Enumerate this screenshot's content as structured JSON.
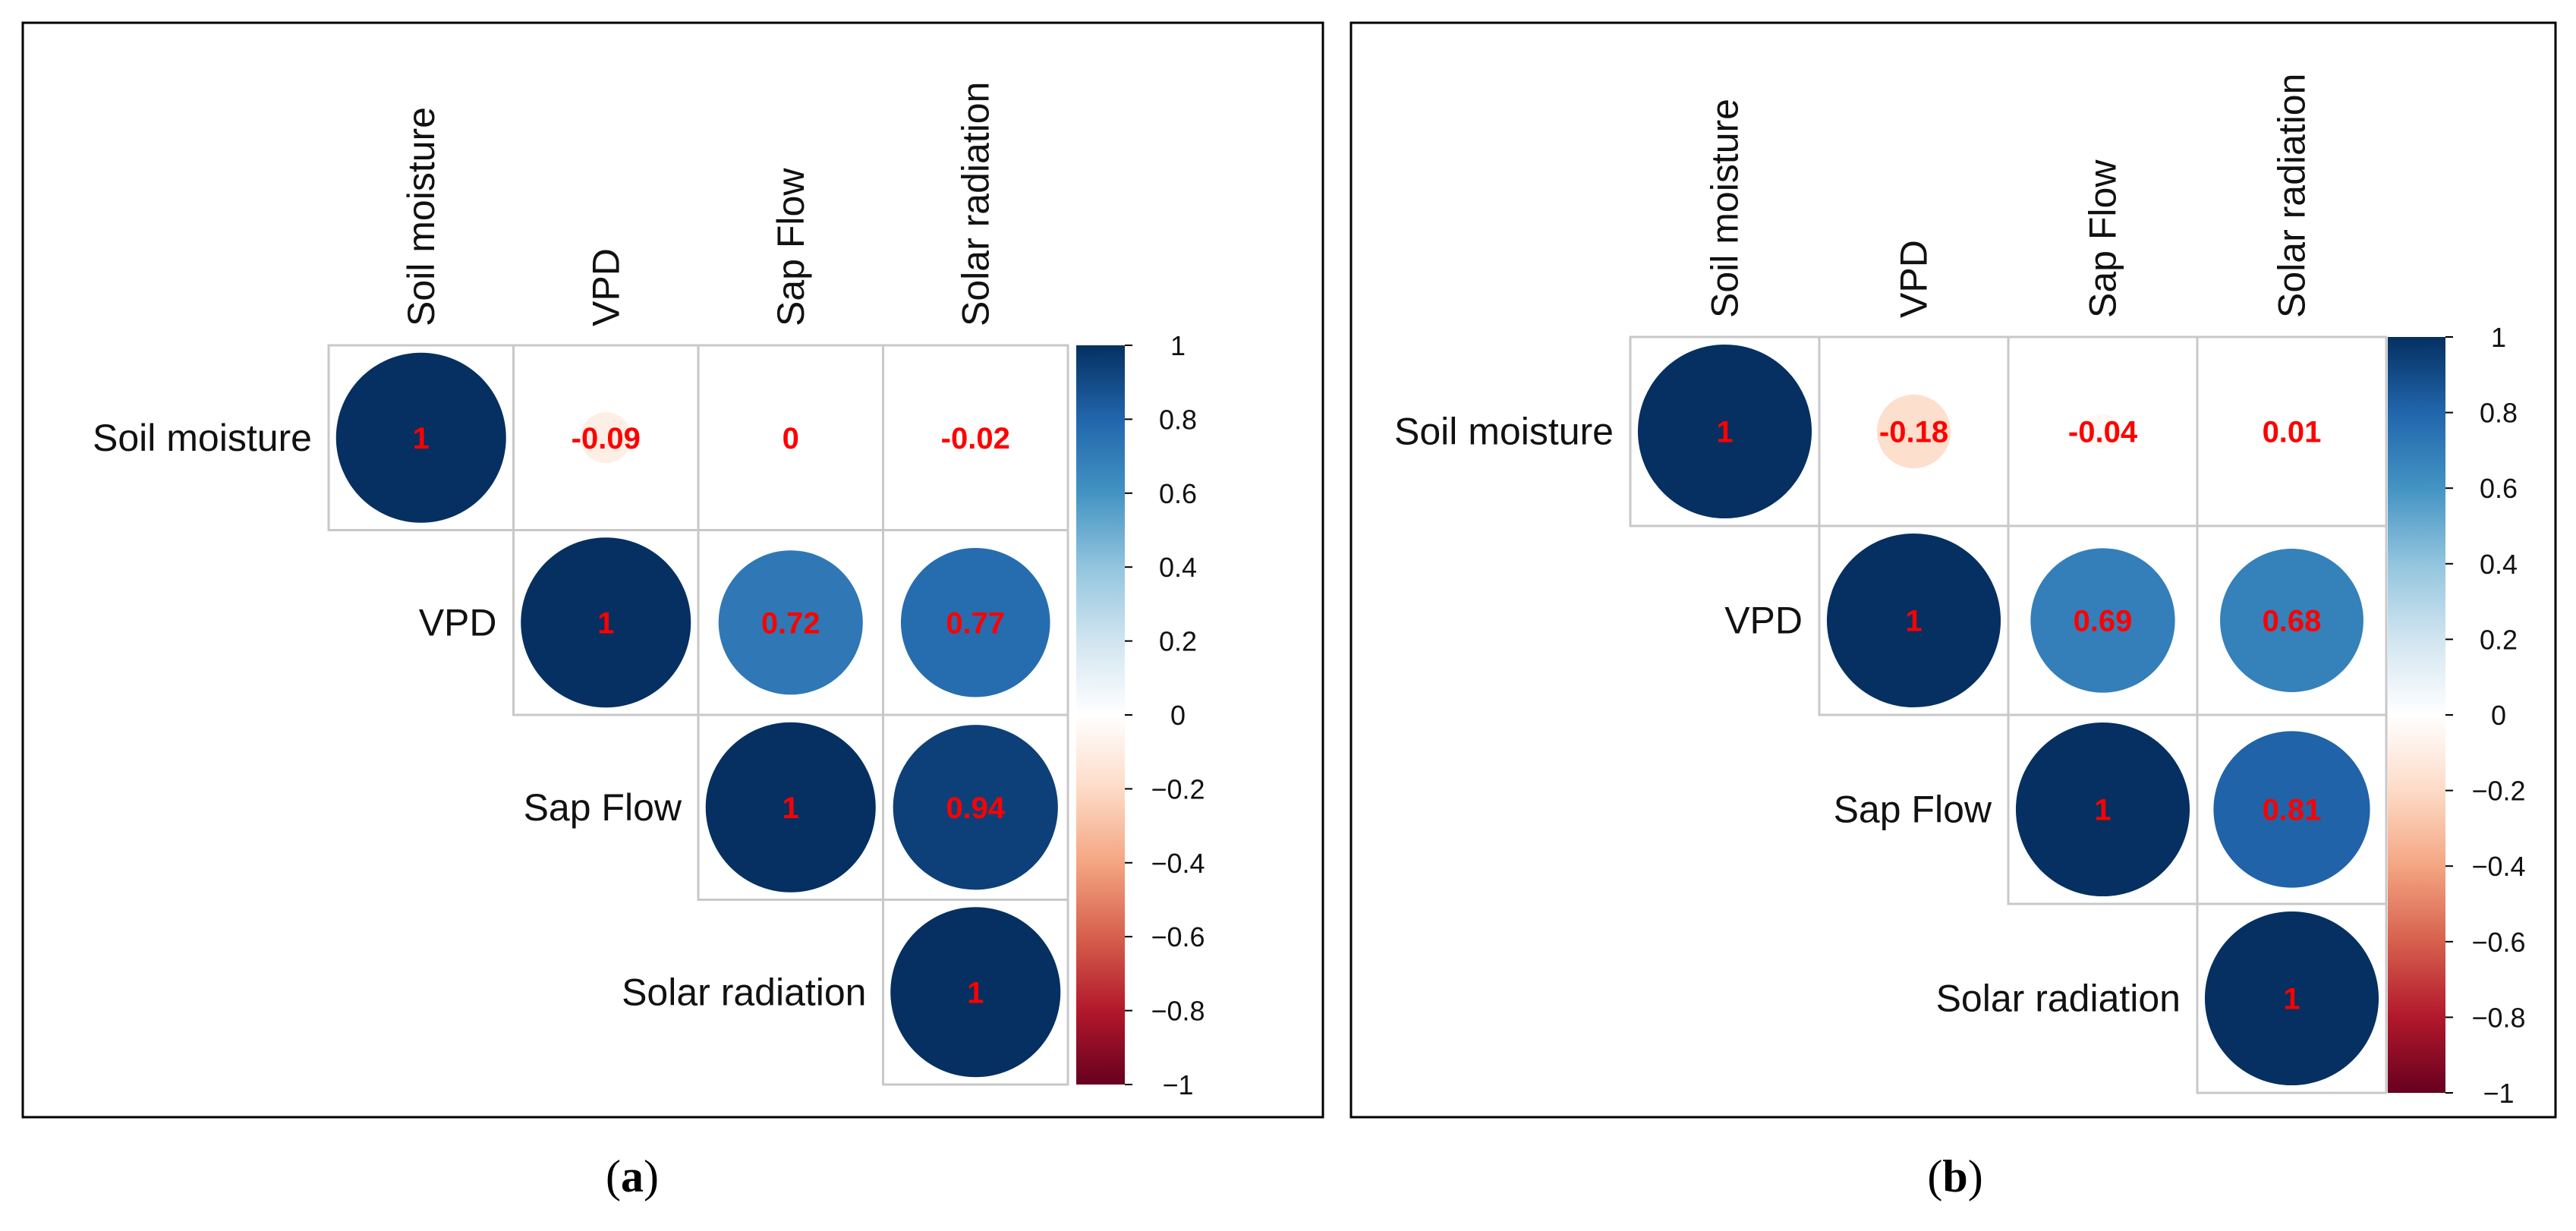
{
  "chart_data": [
    {
      "type": "heatmap",
      "subtype": "correlation-circle-upper",
      "panel_label": "a",
      "variables": [
        "Soil moisture",
        "VPD",
        "Sap Flow",
        "Solar radiation"
      ],
      "matrix": [
        [
          1.0,
          -0.09,
          0.0,
          -0.02
        ],
        [
          null,
          1.0,
          0.72,
          0.77
        ],
        [
          null,
          null,
          1.0,
          0.94
        ],
        [
          null,
          null,
          null,
          1.0
        ]
      ],
      "colorbar": {
        "range": [
          -1,
          1
        ],
        "ticks": [
          "1",
          "0.8",
          "0.6",
          "0.4",
          "0.2",
          "0",
          "−0.2",
          "−0.4",
          "−0.6",
          "−0.8",
          "−1"
        ]
      }
    },
    {
      "type": "heatmap",
      "subtype": "correlation-circle-upper",
      "panel_label": "b",
      "variables": [
        "Soil moisture",
        "VPD",
        "Sap Flow",
        "Solar radiation"
      ],
      "matrix": [
        [
          1.0,
          -0.18,
          -0.04,
          0.01
        ],
        [
          null,
          1.0,
          0.69,
          0.68
        ],
        [
          null,
          null,
          1.0,
          0.81
        ],
        [
          null,
          null,
          null,
          1.0
        ]
      ],
      "colorbar": {
        "range": [
          -1,
          1
        ],
        "ticks": [
          "1",
          "0.8",
          "0.6",
          "0.4",
          "0.2",
          "0",
          "−0.2",
          "−0.4",
          "−0.6",
          "−0.8",
          "−1"
        ]
      }
    }
  ],
  "colors": {
    "palette": [
      "#67001F",
      "#B2182B",
      "#D6604D",
      "#F4A582",
      "#FDDBC7",
      "#FFFFFF",
      "#D1E5F0",
      "#92C5DE",
      "#4393C3",
      "#2166AC",
      "#053061"
    ],
    "value_text": "#ff0000",
    "grid": "#c8c8c8"
  }
}
